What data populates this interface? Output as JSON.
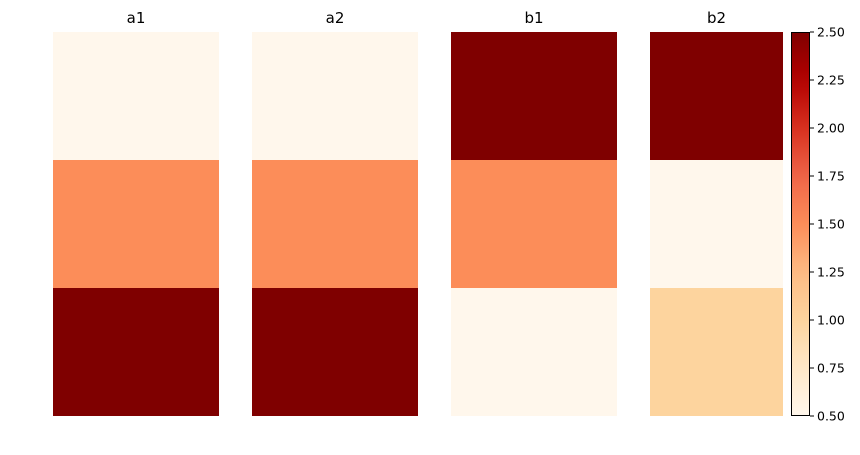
{
  "chart_data": {
    "type": "heatmap",
    "panels": [
      {
        "title": "a1",
        "values": [
          0.5,
          1.5,
          2.5
        ]
      },
      {
        "title": "a2",
        "values": [
          0.5,
          1.5,
          2.5
        ]
      },
      {
        "title": "b1",
        "values": [
          2.5,
          1.5,
          0.5
        ]
      },
      {
        "title": "b2",
        "values": [
          2.5,
          0.5,
          1.0
        ]
      }
    ],
    "colormap": "OrRd",
    "colorbar": {
      "vmin": 0.5,
      "vmax": 2.5,
      "ticks": [
        "0.50",
        "0.75",
        "1.00",
        "1.25",
        "1.50",
        "1.75",
        "2.00",
        "2.25",
        "2.50"
      ],
      "position": "right"
    },
    "axes_visible": false,
    "grid": false
  }
}
